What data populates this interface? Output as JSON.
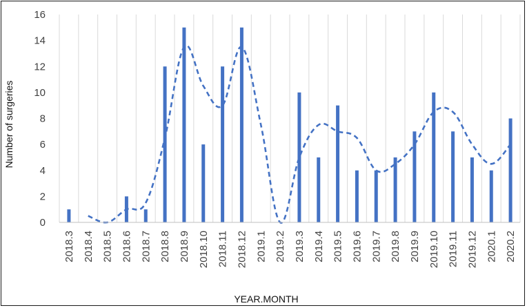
{
  "chart_data": {
    "type": "bar",
    "xlabel": "YEAR.MONTH",
    "ylabel": "Number of surgeries",
    "ylim": [
      0,
      16
    ],
    "yticks": [
      "0",
      "2",
      "4",
      "6",
      "8",
      "10",
      "12",
      "14",
      "16"
    ],
    "grid": "vertical lines between categories",
    "categories": [
      "2018.3",
      "2018.4",
      "2018.5",
      "2018.6",
      "2018.7",
      "2018.8",
      "2018.9",
      "2018.10",
      "2018.11",
      "2018.12",
      "2019.1",
      "2019.2",
      "2019.3",
      "2019.4",
      "2019.5",
      "2019.6",
      "2019.7",
      "2019.8",
      "2019.9",
      "2019.10",
      "2019.11",
      "2019.12",
      "2020.1",
      "2020.2"
    ],
    "series": [
      {
        "type": "bar",
        "color": "#4472C4",
        "values": [
          1,
          0,
          0,
          2,
          1,
          12,
          15,
          6,
          12,
          15,
          0,
          0,
          10,
          5,
          9,
          4,
          4,
          5,
          7,
          10,
          7,
          5,
          4,
          8
        ]
      },
      {
        "type": "line",
        "style": "dashed",
        "color": "#4472C4",
        "values": [
          null,
          0.5,
          0,
          1,
          1.5,
          6.5,
          13.5,
          10.5,
          9,
          13.5,
          7.5,
          0,
          5,
          7.5,
          7,
          6.5,
          4,
          4.5,
          6,
          8.5,
          8.5,
          6,
          4.5,
          6
        ]
      }
    ]
  }
}
